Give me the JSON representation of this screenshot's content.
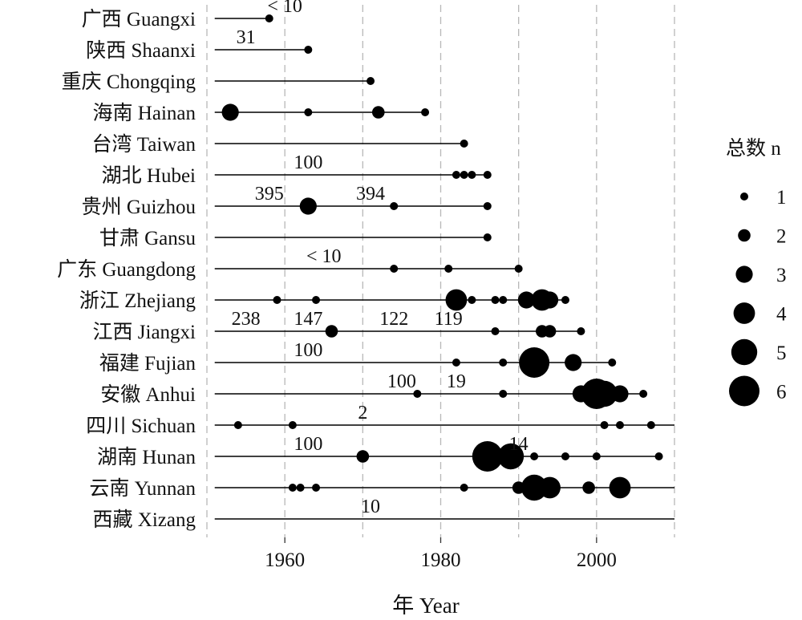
{
  "chart_data": {
    "type": "scatter",
    "xlabel": "年 Year",
    "xlim": [
      1950,
      2010
    ],
    "x_ticks": [
      1960,
      1980,
      2000
    ],
    "grid_vlines": [
      1950,
      1960,
      1970,
      1980,
      1990,
      2000,
      2010
    ],
    "legend": {
      "title": "总数 n",
      "placement": "right",
      "sizes": [
        1,
        2,
        3,
        4,
        5,
        6
      ]
    },
    "rows": [
      {
        "label": "广西 Guangxi",
        "line": [
          1951,
          1958
        ],
        "points": [
          {
            "x": 1958,
            "n": 1
          }
        ],
        "annotations": [
          {
            "text": "< 10",
            "x": 1960
          }
        ]
      },
      {
        "label": "陕西 Shaanxi",
        "line": [
          1951,
          1963
        ],
        "points": [
          {
            "x": 1963,
            "n": 1
          }
        ],
        "annotations": [
          {
            "text": "31",
            "x": 1955
          }
        ]
      },
      {
        "label": "重庆 Chongqing",
        "line": [
          1951,
          1971
        ],
        "points": [
          {
            "x": 1971,
            "n": 1
          }
        ],
        "annotations": []
      },
      {
        "label": "海南 Hainan",
        "line": [
          1951,
          1978
        ],
        "points": [
          {
            "x": 1953,
            "n": 3
          },
          {
            "x": 1963,
            "n": 1
          },
          {
            "x": 1972,
            "n": 2
          },
          {
            "x": 1978,
            "n": 1
          }
        ],
        "annotations": []
      },
      {
        "label": "台湾 Taiwan",
        "line": [
          1951,
          1983
        ],
        "points": [
          {
            "x": 1983,
            "n": 1
          }
        ],
        "annotations": []
      },
      {
        "label": "湖北 Hubei",
        "line": [
          1951,
          1986
        ],
        "points": [
          {
            "x": 1982,
            "n": 1
          },
          {
            "x": 1983,
            "n": 1
          },
          {
            "x": 1984,
            "n": 1
          },
          {
            "x": 1986,
            "n": 1
          }
        ],
        "annotations": [
          {
            "text": "100",
            "x": 1963
          }
        ]
      },
      {
        "label": "贵州 Guizhou",
        "line": [
          1951,
          1986
        ],
        "points": [
          {
            "x": 1963,
            "n": 3
          },
          {
            "x": 1974,
            "n": 1
          },
          {
            "x": 1986,
            "n": 1
          }
        ],
        "annotations": [
          {
            "text": "395",
            "x": 1958
          },
          {
            "text": "394",
            "x": 1971
          }
        ]
      },
      {
        "label": "甘肃 Gansu",
        "line": [
          1951,
          1986
        ],
        "points": [
          {
            "x": 1986,
            "n": 1
          }
        ],
        "annotations": []
      },
      {
        "label": "广东 Guangdong",
        "line": [
          1951,
          1990
        ],
        "points": [
          {
            "x": 1974,
            "n": 1
          },
          {
            "x": 1981,
            "n": 1
          },
          {
            "x": 1990,
            "n": 1
          }
        ],
        "annotations": [
          {
            "text": "< 10",
            "x": 1965
          }
        ]
      },
      {
        "label": "浙江 Zhejiang",
        "line": [
          1951,
          1996
        ],
        "points": [
          {
            "x": 1959,
            "n": 1
          },
          {
            "x": 1964,
            "n": 1
          },
          {
            "x": 1982,
            "n": 4
          },
          {
            "x": 1984,
            "n": 1
          },
          {
            "x": 1987,
            "n": 1
          },
          {
            "x": 1988,
            "n": 1
          },
          {
            "x": 1991,
            "n": 3
          },
          {
            "x": 1993,
            "n": 4
          },
          {
            "x": 1994,
            "n": 3
          },
          {
            "x": 1996,
            "n": 1
          }
        ],
        "annotations": []
      },
      {
        "label": "江西 Jiangxi",
        "line": [
          1951,
          1998
        ],
        "points": [
          {
            "x": 1966,
            "n": 2
          },
          {
            "x": 1987,
            "n": 1
          },
          {
            "x": 1993,
            "n": 2
          },
          {
            "x": 1994,
            "n": 2
          },
          {
            "x": 1998,
            "n": 1
          }
        ],
        "annotations": [
          {
            "text": "238",
            "x": 1955
          },
          {
            "text": "147",
            "x": 1963
          },
          {
            "text": "122",
            "x": 1974
          },
          {
            "text": "119",
            "x": 1981
          }
        ]
      },
      {
        "label": "福建 Fujian",
        "line": [
          1951,
          2002
        ],
        "points": [
          {
            "x": 1982,
            "n": 1
          },
          {
            "x": 1988,
            "n": 1
          },
          {
            "x": 1992,
            "n": 6
          },
          {
            "x": 1997,
            "n": 3
          },
          {
            "x": 2002,
            "n": 1
          }
        ],
        "annotations": [
          {
            "text": "100",
            "x": 1963
          }
        ]
      },
      {
        "label": "安徽 Anhui",
        "line": [
          1951,
          2006
        ],
        "points": [
          {
            "x": 1977,
            "n": 1
          },
          {
            "x": 1988,
            "n": 1
          },
          {
            "x": 1998,
            "n": 3
          },
          {
            "x": 2000,
            "n": 6
          },
          {
            "x": 2001,
            "n": 5
          },
          {
            "x": 2003,
            "n": 3
          },
          {
            "x": 2006,
            "n": 1
          }
        ],
        "annotations": [
          {
            "text": "100",
            "x": 1975
          },
          {
            "text": "19",
            "x": 1982
          }
        ]
      },
      {
        "label": "四川 Sichuan",
        "line": [
          1951,
          2010
        ],
        "points": [
          {
            "x": 1954,
            "n": 1
          },
          {
            "x": 1961,
            "n": 1
          },
          {
            "x": 2001,
            "n": 1
          },
          {
            "x": 2003,
            "n": 1
          },
          {
            "x": 2007,
            "n": 1
          }
        ],
        "annotations": [
          {
            "text": "2",
            "x": 1970
          }
        ]
      },
      {
        "label": "湖南 Hunan",
        "line": [
          1951,
          2008
        ],
        "points": [
          {
            "x": 1970,
            "n": 2
          },
          {
            "x": 1986,
            "n": 6
          },
          {
            "x": 1989,
            "n": 5
          },
          {
            "x": 1992,
            "n": 1
          },
          {
            "x": 1996,
            "n": 1
          },
          {
            "x": 2000,
            "n": 1
          },
          {
            "x": 2008,
            "n": 1
          }
        ],
        "annotations": [
          {
            "text": "100",
            "x": 1963
          },
          {
            "text": "14",
            "x": 1990
          }
        ]
      },
      {
        "label": "云南 Yunnan",
        "line": [
          1951,
          2010
        ],
        "points": [
          {
            "x": 1961,
            "n": 1
          },
          {
            "x": 1962,
            "n": 1
          },
          {
            "x": 1964,
            "n": 1
          },
          {
            "x": 1983,
            "n": 1
          },
          {
            "x": 1990,
            "n": 2
          },
          {
            "x": 1992,
            "n": 5
          },
          {
            "x": 1994,
            "n": 4
          },
          {
            "x": 1999,
            "n": 2
          },
          {
            "x": 2003,
            "n": 4
          }
        ],
        "annotations": []
      },
      {
        "label": "西藏 Xizang",
        "line": [
          1951,
          2010
        ],
        "points": [],
        "annotations": [
          {
            "text": "10",
            "x": 1971
          }
        ]
      }
    ]
  }
}
